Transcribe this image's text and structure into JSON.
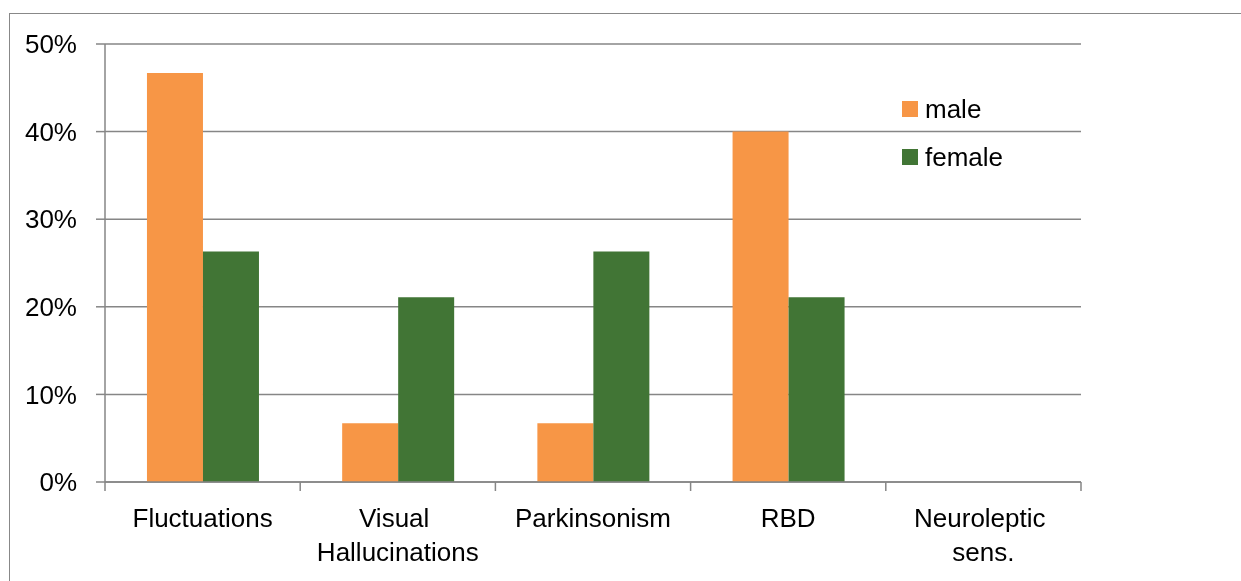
{
  "chart_data": {
    "type": "bar",
    "categories": [
      "Fluctuations",
      "Visual Hallucinations",
      "Parkinsonism",
      "RBD",
      "Neuroleptic sens."
    ],
    "series": [
      {
        "name": "male",
        "color": "#f79646",
        "values": [
          46.7,
          6.7,
          6.7,
          40,
          0
        ]
      },
      {
        "name": "female",
        "color": "#417535",
        "values": [
          26.3,
          21.1,
          26.3,
          21.1,
          0
        ]
      }
    ],
    "ylim": [
      0,
      50
    ],
    "yticks": [
      {
        "value": 0,
        "label": "0%"
      },
      {
        "value": 10,
        "label": "10%"
      },
      {
        "value": 20,
        "label": "20%"
      },
      {
        "value": 30,
        "label": "30%"
      },
      {
        "value": 40,
        "label": "40%"
      },
      {
        "value": 50,
        "label": "50%"
      }
    ],
    "grid": "y",
    "legend": "top right"
  }
}
